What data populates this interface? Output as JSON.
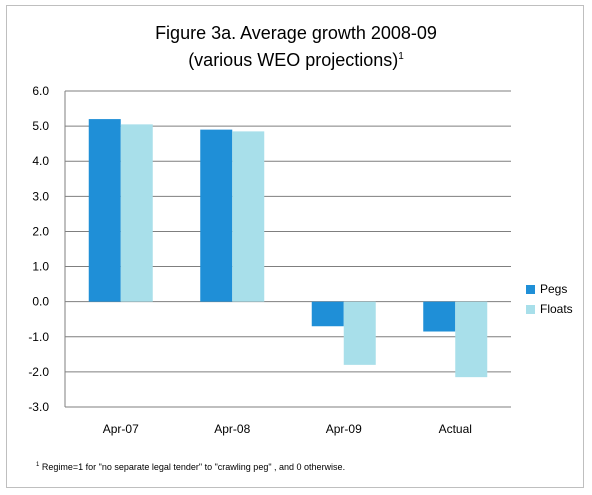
{
  "chart_data": {
    "type": "bar",
    "title_line1": "Figure 3a. Average growth 2008-09",
    "title_line2": "(various WEO projections)",
    "title_sup": "1",
    "categories": [
      "Apr-07",
      "Apr-08",
      "Apr-09",
      "Actual"
    ],
    "series": [
      {
        "name": "Pegs",
        "color": "#1f8fd7",
        "values": [
          5.2,
          4.9,
          -0.7,
          -0.85
        ]
      },
      {
        "name": "Floats",
        "color": "#a8dfea",
        "values": [
          5.05,
          4.85,
          -1.8,
          -2.15
        ]
      }
    ],
    "ylim": [
      -3,
      6
    ],
    "yticks": [
      "6.0",
      "5.0",
      "4.0",
      "3.0",
      "2.0",
      "1.0",
      "0.0",
      "-1.0",
      "-2.0",
      "-3.0"
    ],
    "grid": true,
    "legend_position": "right",
    "footnote_sup": "1",
    "footnote": "Regime=1 for \"no separate legal tender\" to \"crawling peg\" , and 0 otherwise."
  }
}
